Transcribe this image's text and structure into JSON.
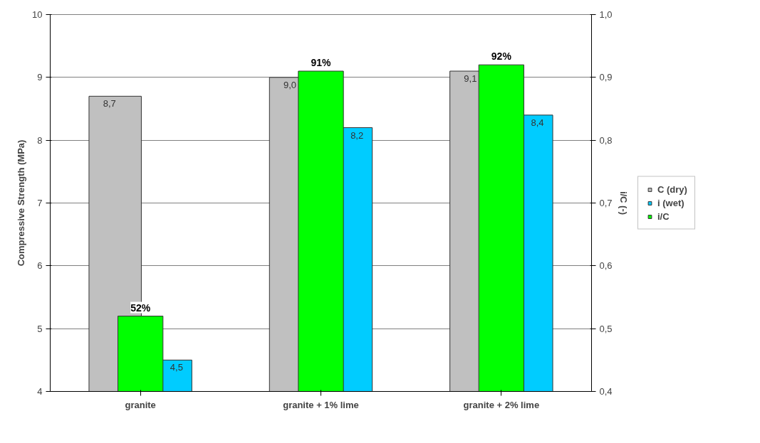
{
  "chart_data": {
    "type": "bar",
    "categories": [
      "granite",
      "granite + 1% lime",
      "granite + 2% lime"
    ],
    "series": [
      {
        "name": "C (dry)",
        "color": "#c0c0c0",
        "values": [
          8.7,
          9.0,
          9.1
        ],
        "value_labels": [
          "8,7",
          "9,0",
          "9,1"
        ]
      },
      {
        "name": "i (wet)",
        "color": "#00ccff",
        "values": [
          4.5,
          8.2,
          8.4
        ],
        "value_labels": [
          "4,5",
          "8,2",
          "8,4"
        ]
      },
      {
        "name": "i/C",
        "color": "#00ff00",
        "axis": "y2",
        "values": [
          0.52,
          0.91,
          0.92
        ],
        "value_labels": [
          "52%",
          "91%",
          "92%"
        ]
      }
    ],
    "ylabel": "Compressive Strength (MPa)",
    "y2label": "i/C (-)",
    "ylim": [
      4,
      10
    ],
    "yticks": [
      4,
      5,
      6,
      7,
      8,
      9,
      10
    ],
    "y2lim": [
      0.4,
      1.0
    ],
    "y2ticks": [
      {
        "value": 0.4,
        "label": "0,4"
      },
      {
        "value": 0.5,
        "label": "0,5"
      },
      {
        "value": 0.6,
        "label": "0,6"
      },
      {
        "value": 0.7,
        "label": "0,7"
      },
      {
        "value": 0.8,
        "label": "0,8"
      },
      {
        "value": 0.9,
        "label": "0,9"
      },
      {
        "value": 1.0,
        "label": "1,0"
      }
    ],
    "grid": "y",
    "legend": "right"
  }
}
